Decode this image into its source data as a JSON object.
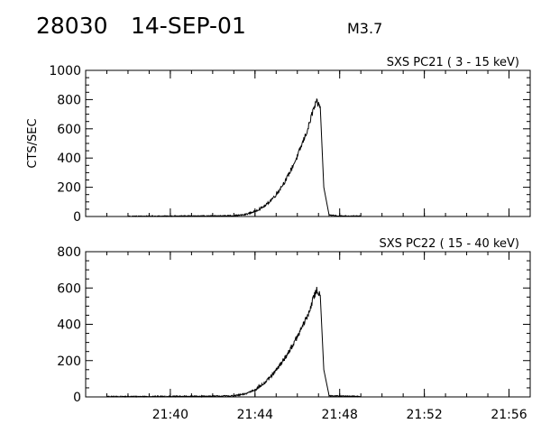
{
  "header": {
    "event_id": "28030",
    "date": "14-SEP-01",
    "flare_class": "M3.7"
  },
  "chart_data": [
    {
      "type": "line",
      "title": "SXS PC21  (  3 - 15 keV)",
      "ylabel": "CTS/SEC",
      "xlabel": "",
      "ylim": [
        0,
        1000
      ],
      "yticks": [
        0,
        200,
        400,
        600,
        800,
        1000
      ],
      "xlim": [
        "21:36",
        "21:57"
      ],
      "xticks": [
        "21:40",
        "21:44",
        "21:48",
        "21:52",
        "21:56"
      ],
      "show_x_tick_labels": false,
      "x": [
        "21:38",
        "21:40",
        "21:42",
        "21:43",
        "21:43:30",
        "21:44",
        "21:44:30",
        "21:45",
        "21:45:30",
        "21:46",
        "21:46:30",
        "21:46:45",
        "21:46:55",
        "21:47:05",
        "21:47:15",
        "21:47:30",
        "21:48",
        "21:49"
      ],
      "values": [
        2,
        3,
        4,
        6,
        12,
        35,
        75,
        150,
        260,
        410,
        600,
        730,
        780,
        750,
        200,
        10,
        4,
        3
      ],
      "color": "#000000"
    },
    {
      "type": "line",
      "title": "SXS PC22  ( 15 - 40 keV)",
      "ylabel": "",
      "xlabel": "",
      "ylim": [
        0,
        800
      ],
      "yticks": [
        0,
        200,
        400,
        600,
        800
      ],
      "xlim": [
        "21:36",
        "21:57"
      ],
      "xticks": [
        "21:40",
        "21:44",
        "21:48",
        "21:52",
        "21:56"
      ],
      "show_x_tick_labels": true,
      "x": [
        "21:37",
        "21:40",
        "21:42",
        "21:43",
        "21:43:30",
        "21:44",
        "21:44:30",
        "21:45",
        "21:45:30",
        "21:46",
        "21:46:30",
        "21:46:45",
        "21:46:55",
        "21:47:05",
        "21:47:15",
        "21:47:30",
        "21:48",
        "21:49"
      ],
      "values": [
        2,
        3,
        4,
        6,
        15,
        40,
        80,
        145,
        230,
        330,
        450,
        540,
        590,
        560,
        150,
        8,
        4,
        3
      ],
      "color": "#000000"
    }
  ]
}
